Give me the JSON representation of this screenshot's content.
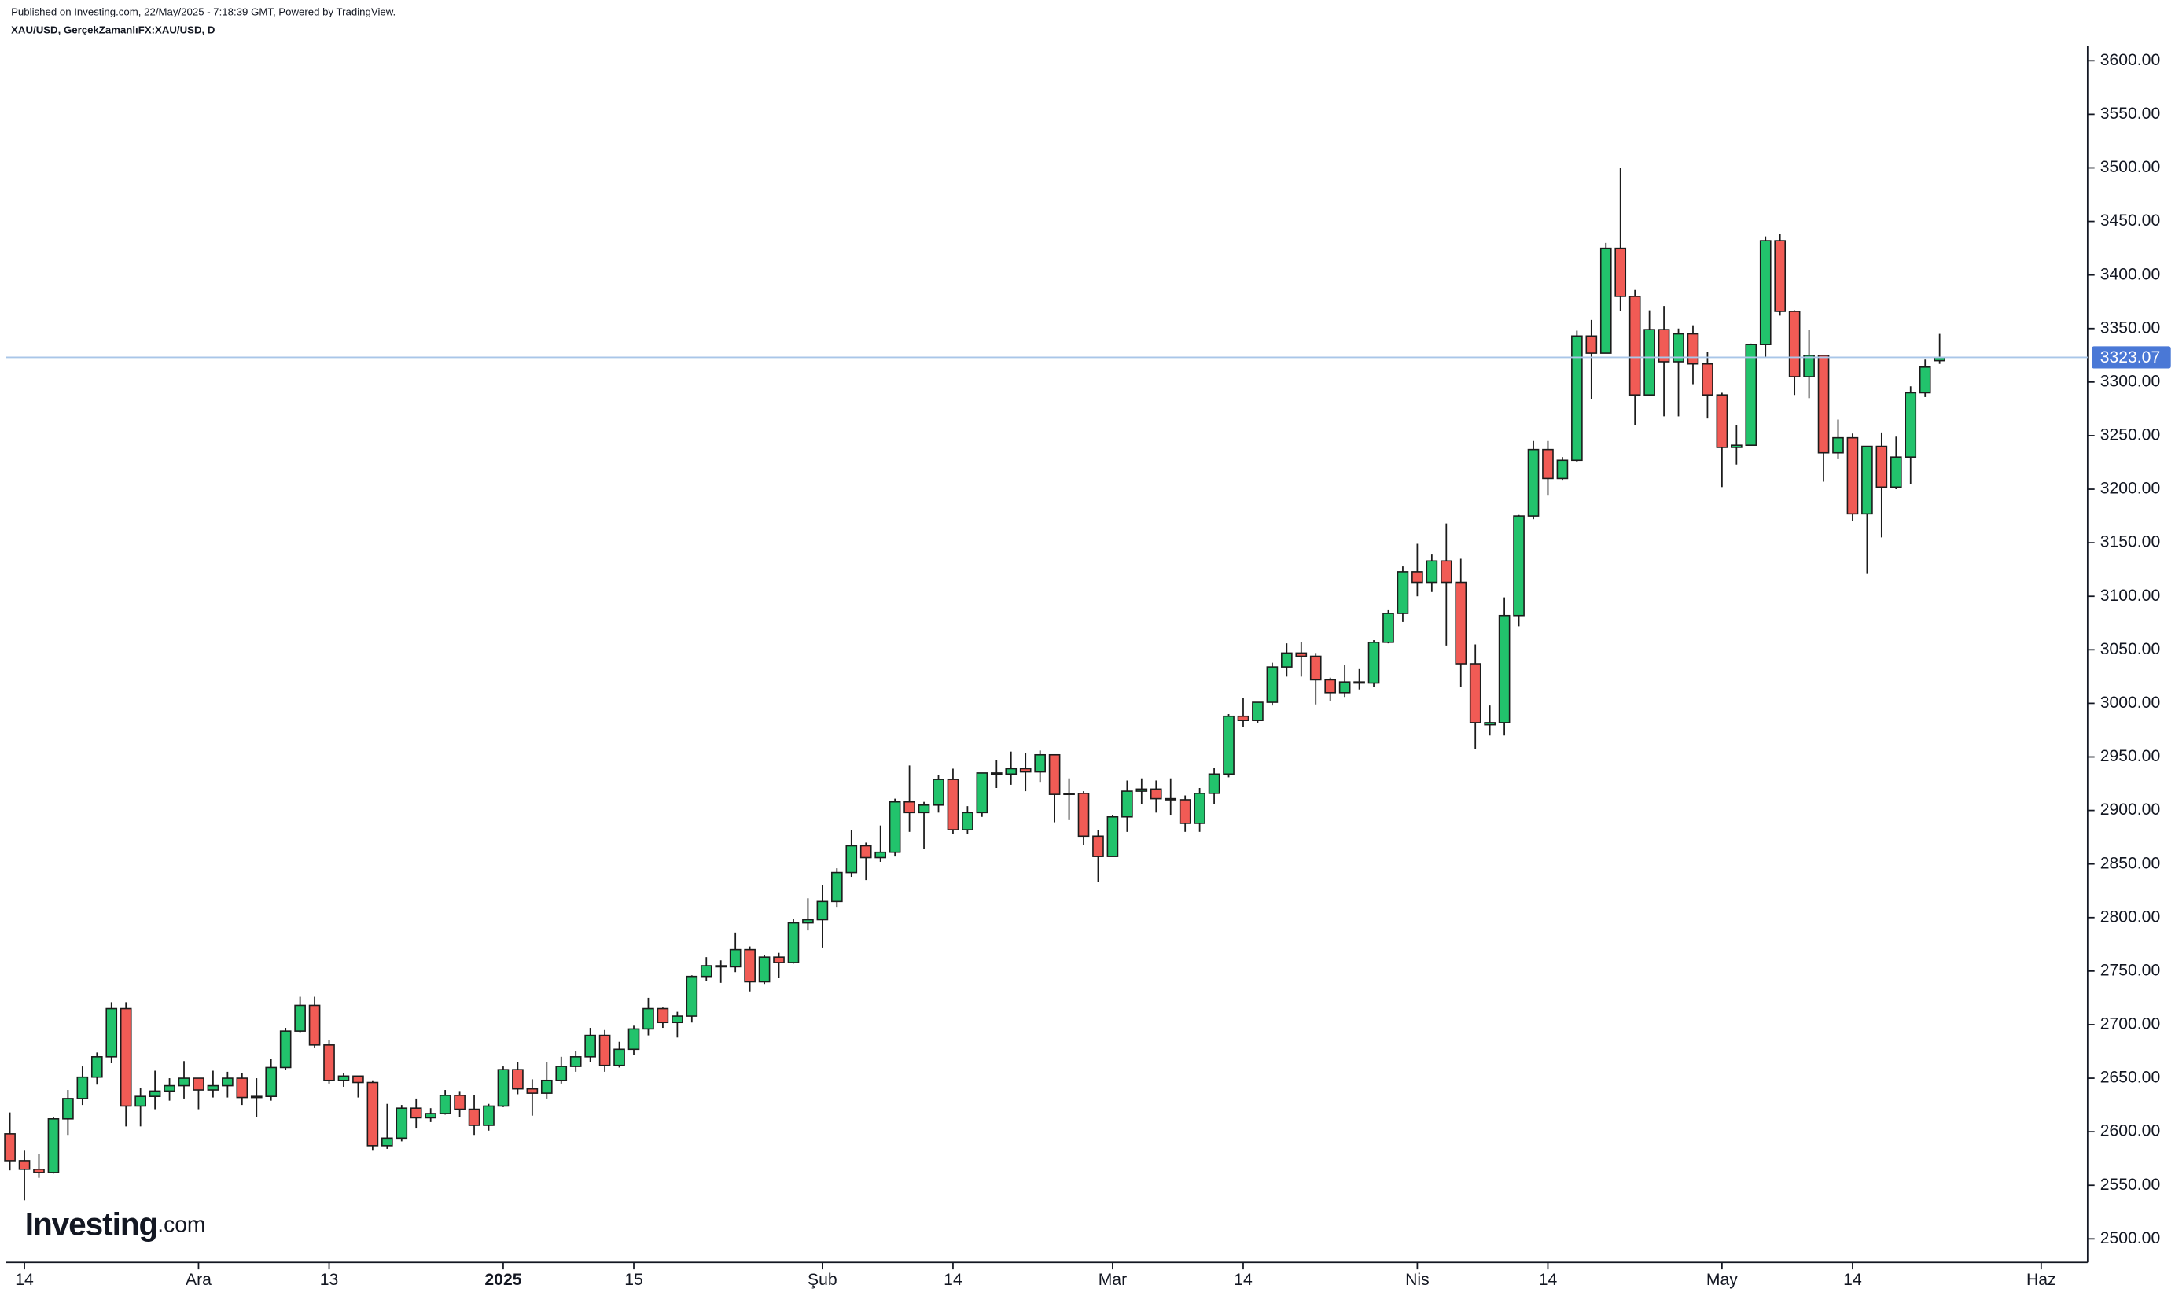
{
  "header": {
    "published": "Published on Investing.com, 22/May/2025 - 7:18:39 GMT, Powered by TradingView.",
    "symbol": "XAU/USD, GerçekZamanlıFX:XAU/USD, D"
  },
  "logo": {
    "main": "Investing",
    "suffix": ".com"
  },
  "chart_data": {
    "type": "candlestick",
    "up_color": "#22c36c",
    "down_color": "#f15b55",
    "border_color": "#1b1b1b",
    "open": [
      2598,
      2573,
      2565,
      2562,
      2612,
      2631,
      2651,
      2670,
      2715,
      2624,
      2633,
      2638,
      2643,
      2650,
      2639,
      2643,
      2650,
      2632,
      2633,
      2660,
      2694,
      2718,
      2681,
      2648,
      2652,
      2646,
      2587,
      2594,
      2622,
      2613,
      2617,
      2634,
      2621,
      2606,
      2624,
      2658,
      2640,
      2636,
      2648,
      2661,
      2670,
      2690,
      2662,
      2677,
      2696,
      2715,
      2702,
      2708,
      2745,
      2755,
      2754,
      2770,
      2740,
      2763,
      2758,
      2795,
      2798,
      2815,
      2842,
      2867,
      2856,
      2861,
      2908,
      2898,
      2905,
      2929,
      2882,
      2898,
      2935,
      2934,
      2939,
      2936,
      2952,
      2915,
      2916,
      2876,
      2857,
      2894,
      2918,
      2920,
      2911,
      2910,
      2888,
      2916,
      2934,
      2988,
      2984,
      3001,
      3034,
      3047,
      3044,
      3022,
      3010,
      3020,
      3019,
      3057,
      3084,
      3123,
      3113,
      3133,
      3113,
      3037,
      2980,
      2982,
      3082,
      3175,
      3237,
      3210,
      3227,
      3343,
      3327,
      3425,
      3380,
      3288,
      3349,
      3319,
      3345,
      3317,
      3288,
      3239,
      3241,
      3335,
      3432,
      3366,
      3305,
      3325,
      3234,
      3248,
      3177,
      3240,
      3202,
      3230,
      3290,
      3320
    ],
    "high": [
      2618,
      2583,
      2579,
      2614,
      2639,
      2661,
      2674,
      2721,
      2721,
      2641,
      2657,
      2650,
      2666,
      2650,
      2657,
      2656,
      2655,
      2650,
      2668,
      2697,
      2726,
      2726,
      2686,
      2655,
      2652,
      2648,
      2626,
      2625,
      2631,
      2622,
      2639,
      2638,
      2634,
      2626,
      2661,
      2665,
      2649,
      2665,
      2670,
      2675,
      2697,
      2695,
      2684,
      2699,
      2725,
      2716,
      2712,
      2746,
      2763,
      2760,
      2786,
      2773,
      2765,
      2767,
      2799,
      2818,
      2830,
      2846,
      2882,
      2870,
      2886,
      2911,
      2942,
      2908,
      2933,
      2939,
      2904,
      2935,
      2947,
      2955,
      2954,
      2956,
      2952,
      2930,
      2918,
      2882,
      2896,
      2928,
      2930,
      2928,
      2930,
      2914,
      2921,
      2940,
      2990,
      3005,
      3001,
      3038,
      3056,
      3057,
      3047,
      3024,
      3036,
      3032,
      3059,
      3087,
      3128,
      3149,
      3139,
      3168,
      3135,
      3055,
      2998,
      3099,
      3176,
      3245,
      3245,
      3230,
      3348,
      3358,
      3430,
      3500,
      3386,
      3367,
      3371,
      3350,
      3353,
      3328,
      3290,
      3260,
      3336,
      3436,
      3438,
      3367,
      3349,
      3325,
      3265,
      3252,
      3240,
      3253,
      3249,
      3296,
      3321,
      3345
    ],
    "low": [
      2564,
      2536,
      2557,
      2561,
      2597,
      2625,
      2644,
      2664,
      2605,
      2605,
      2621,
      2629,
      2631,
      2621,
      2632,
      2632,
      2625,
      2614,
      2629,
      2658,
      2693,
      2678,
      2645,
      2642,
      2632,
      2583,
      2584,
      2591,
      2603,
      2609,
      2616,
      2614,
      2597,
      2601,
      2623,
      2635,
      2615,
      2631,
      2645,
      2656,
      2665,
      2656,
      2660,
      2672,
      2690,
      2697,
      2688,
      2702,
      2741,
      2739,
      2749,
      2731,
      2738,
      2744,
      2757,
      2788,
      2772,
      2810,
      2838,
      2835,
      2852,
      2857,
      2880,
      2864,
      2898,
      2878,
      2878,
      2894,
      2921,
      2924,
      2918,
      2926,
      2889,
      2891,
      2868,
      2833,
      2857,
      2880,
      2906,
      2898,
      2896,
      2880,
      2880,
      2906,
      2931,
      2978,
      2982,
      2998,
      3025,
      3025,
      2999,
      3002,
      3006,
      3013,
      3015,
      3056,
      3076,
      3100,
      3104,
      3054,
      3015,
      2957,
      2970,
      2970,
      3072,
      3172,
      3194,
      3208,
      3225,
      3284,
      3327,
      3366,
      3260,
      3287,
      3268,
      3268,
      3298,
      3266,
      3202,
      3223,
      3241,
      3323,
      3362,
      3288,
      3285,
      3207,
      3228,
      3170,
      3121,
      3155,
      3200,
      3205,
      3286,
      3317
    ],
    "close": [
      2573,
      2565,
      2562,
      2612,
      2631,
      2651,
      2670,
      2715,
      2624,
      2633,
      2638,
      2643,
      2650,
      2639,
      2643,
      2650,
      2632,
      2633,
      2660,
      2694,
      2718,
      2681,
      2648,
      2652,
      2646,
      2587,
      2594,
      2622,
      2613,
      2617,
      2634,
      2621,
      2606,
      2624,
      2658,
      2640,
      2636,
      2648,
      2661,
      2670,
      2690,
      2662,
      2677,
      2696,
      2715,
      2702,
      2708,
      2745,
      2755,
      2754,
      2770,
      2740,
      2763,
      2758,
      2795,
      2798,
      2815,
      2842,
      2867,
      2856,
      2861,
      2908,
      2898,
      2905,
      2929,
      2882,
      2898,
      2935,
      2934,
      2939,
      2936,
      2952,
      2915,
      2916,
      2876,
      2857,
      2894,
      2918,
      2920,
      2911,
      2910,
      2888,
      2916,
      2934,
      2988,
      2984,
      3001,
      3034,
      3047,
      3044,
      3022,
      3010,
      3020,
      3019,
      3057,
      3084,
      3123,
      3113,
      3133,
      3113,
      3037,
      2982,
      2982,
      3082,
      3175,
      3237,
      3210,
      3227,
      3343,
      3327,
      3425,
      3380,
      3288,
      3349,
      3319,
      3345,
      3317,
      3288,
      3239,
      3241,
      3335,
      3432,
      3366,
      3305,
      3325,
      3234,
      3248,
      3177,
      3240,
      3202,
      3230,
      3290,
      3314,
      3323.07
    ],
    "last_price": 3323.07,
    "last_price_color": "#4a78d6",
    "last_price_line_color": "#a9c6e8",
    "xlim": [
      -0.3,
      143.2
    ],
    "xticks": [
      {
        "value": 1,
        "label": "14"
      },
      {
        "value": 13,
        "label": "Ara"
      },
      {
        "value": 22,
        "label": "13"
      },
      {
        "value": 34,
        "label": "2025"
      },
      {
        "value": 43,
        "label": "15"
      },
      {
        "value": 56,
        "label": "Şub"
      },
      {
        "value": 65,
        "label": "14"
      },
      {
        "value": 76,
        "label": "Mar"
      },
      {
        "value": 85,
        "label": "14"
      },
      {
        "value": 97,
        "label": "Nis"
      },
      {
        "value": 106,
        "label": "14"
      },
      {
        "value": 118,
        "label": "May"
      },
      {
        "value": 127,
        "label": "14"
      },
      {
        "value": 140,
        "label": "Haz"
      }
    ],
    "ylim": [
      2478,
      3614
    ],
    "yticks": [
      {
        "value": 2500,
        "label": "2500.00"
      },
      {
        "value": 2550,
        "label": "2550.00"
      },
      {
        "value": 2600,
        "label": "2600.00"
      },
      {
        "value": 2650,
        "label": "2650.00"
      },
      {
        "value": 2700,
        "label": "2700.00"
      },
      {
        "value": 2750,
        "label": "2750.00"
      },
      {
        "value": 2800,
        "label": "2800.00"
      },
      {
        "value": 2850,
        "label": "2850.00"
      },
      {
        "value": 2900,
        "label": "2900.00"
      },
      {
        "value": 2950,
        "label": "2950.00"
      },
      {
        "value": 3000,
        "label": "3000.00"
      },
      {
        "value": 3050,
        "label": "3050.00"
      },
      {
        "value": 3100,
        "label": "3100.00"
      },
      {
        "value": 3150,
        "label": "3150.00"
      },
      {
        "value": 3200,
        "label": "3200.00"
      },
      {
        "value": 3250,
        "label": "3250.00"
      },
      {
        "value": 3300,
        "label": "3300.00"
      },
      {
        "value": 3350,
        "label": "3350.00"
      },
      {
        "value": 3400,
        "label": "3400.00"
      },
      {
        "value": 3450,
        "label": "3450.00"
      },
      {
        "value": 3500,
        "label": "3500.00"
      },
      {
        "value": 3550,
        "label": "3550.00"
      },
      {
        "value": 3600,
        "label": "3600.00"
      }
    ],
    "grid": false
  }
}
